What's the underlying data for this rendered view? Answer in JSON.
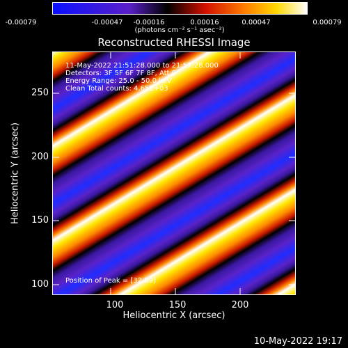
{
  "colorbar": {
    "ticks": [
      "-0.00079",
      "-0.00047",
      "-0.00016",
      "0.00016",
      "0.00047",
      "0.00079"
    ],
    "unit_label": "(photons cm⁻² s⁻¹ asec⁻²)"
  },
  "title": "Reconstructed RHESSI Image",
  "annotations": {
    "time_range": "11-May-2022 21:51:28.000 to 21:57:28.000",
    "detectors": "Detectors: 3F 5F 6F 7F 8F, Att 0",
    "energy": "Energy Range: 25.0 - 50.0 keV",
    "clean": "Clean     Total counts: 4.65E+03",
    "peak": "Position of Peak = [32,89]"
  },
  "axes": {
    "xlabel": "Heliocentric X (arcsec)",
    "ylabel": "Heliocentric Y (arcsec)",
    "xticks": [
      "100",
      "150",
      "200"
    ],
    "yticks": [
      "250",
      "200",
      "150",
      "100"
    ]
  },
  "footer_date": "10-May-2022 19:17",
  "colors": {
    "blue": "#1f2cff",
    "purple": "#5a20c8",
    "black": "#000000",
    "red": "#d22000",
    "orange": "#ff8800",
    "yellow": "#ffee00",
    "white": "#ffffff"
  }
}
